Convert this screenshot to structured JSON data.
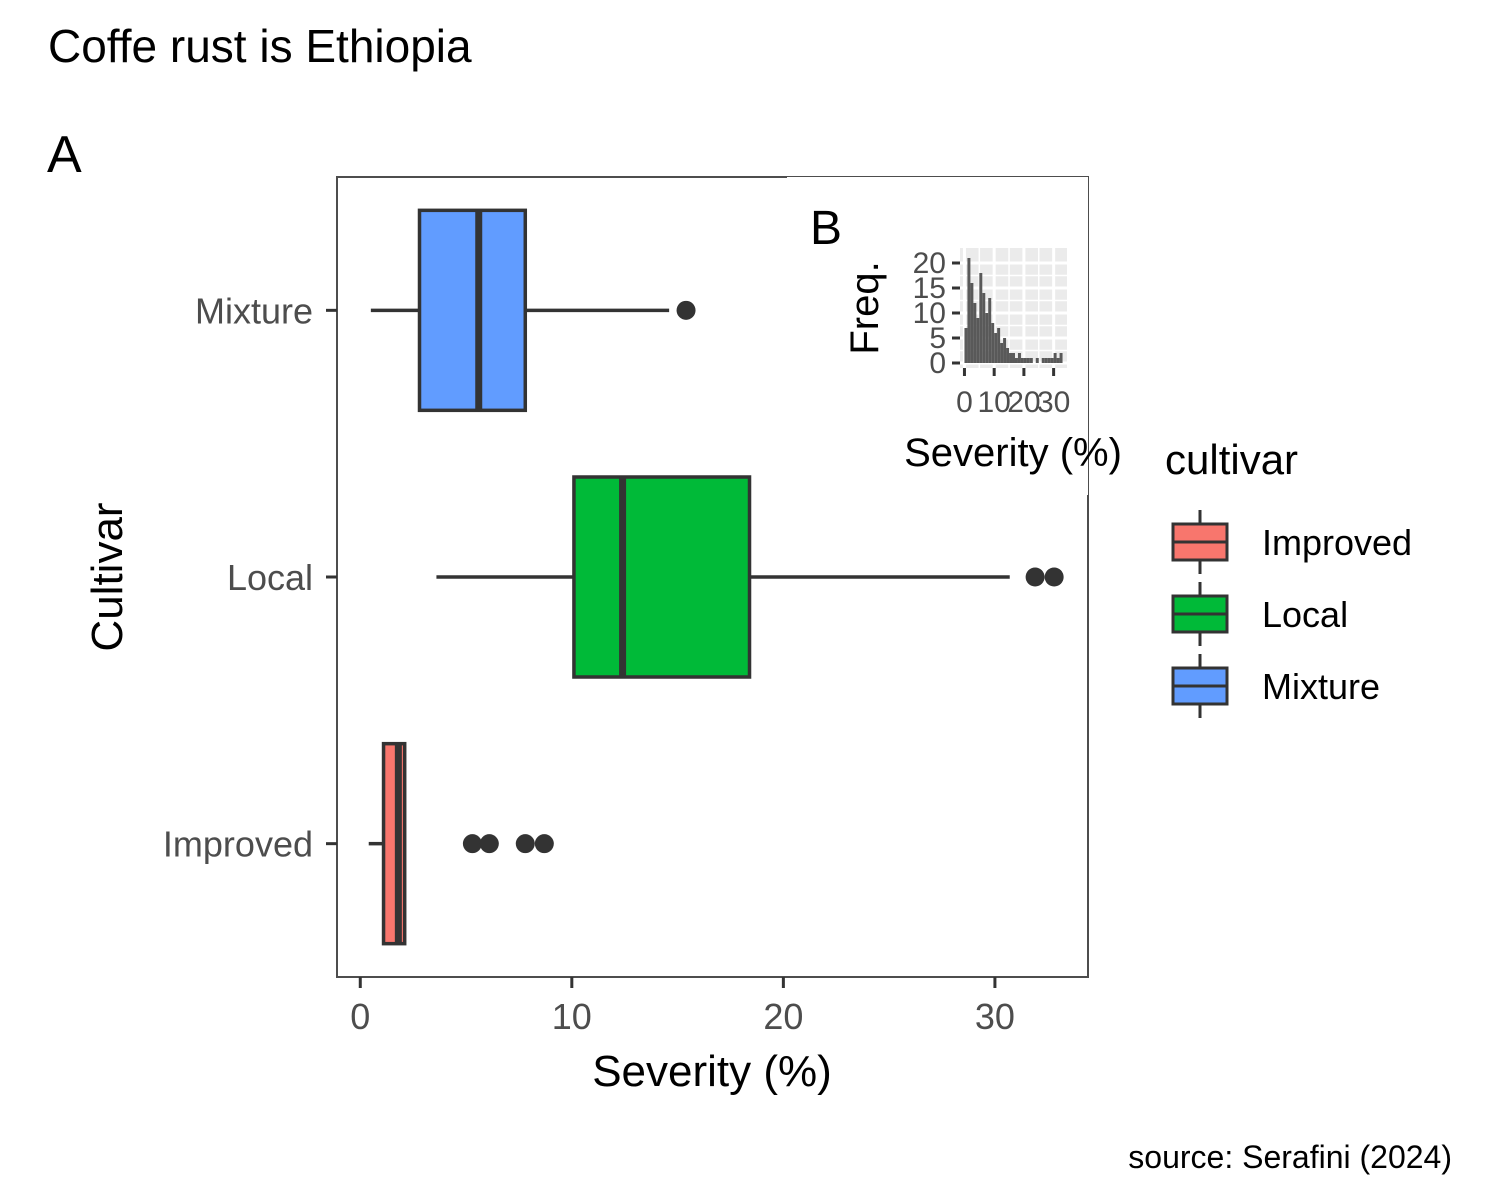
{
  "title": "Coffe rust is Ethiopia",
  "caption": "source: Serafini (2024)",
  "chart_data": [
    {
      "tag": "A",
      "type": "boxplot",
      "orientation": "horizontal",
      "xlabel": "Severity (%)",
      "ylabel": "Cultivar",
      "xlim": [
        -1.1,
        34.4
      ],
      "xticks": [
        0,
        10,
        20,
        30
      ],
      "categories": [
        "Improved",
        "Local",
        "Mixture"
      ],
      "legend": {
        "title": "cultivar",
        "position": "right",
        "entries": [
          "Improved",
          "Local",
          "Mixture"
        ]
      },
      "colors": {
        "Improved": "#F8766D",
        "Local": "#00BA38",
        "Mixture": "#619CFF"
      },
      "series": [
        {
          "category": "Improved",
          "whisker_low": 0.4,
          "q1": 1.1,
          "median": 1.8,
          "q3": 2.1,
          "whisker_high": 2.1,
          "outliers": [
            5.3,
            6.1,
            7.8,
            8.7
          ]
        },
        {
          "category": "Local",
          "whisker_low": 3.6,
          "q1": 10.1,
          "median": 12.4,
          "q3": 18.4,
          "whisker_high": 30.7,
          "outliers": [
            31.9,
            32.8
          ]
        },
        {
          "category": "Mixture",
          "whisker_low": 0.5,
          "q1": 2.8,
          "median": 5.6,
          "q3": 7.8,
          "whisker_high": 14.6,
          "outliers": [
            15.4
          ]
        }
      ]
    },
    {
      "tag": "B",
      "type": "histogram",
      "xlabel": "Severity (%)",
      "ylabel": "Freq.",
      "xlim": [
        -1.5,
        34.5
      ],
      "ylim": [
        -1,
        23
      ],
      "xticks": [
        0,
        10,
        20,
        30
      ],
      "xtick_labels": [
        "0",
        "10",
        "20",
        "30"
      ],
      "yticks": [
        0,
        5,
        10,
        15,
        20
      ],
      "bar_color": "#595959",
      "bins": [
        {
          "x": 0.5,
          "y": 7
        },
        {
          "x": 1.5,
          "y": 21
        },
        {
          "x": 2.5,
          "y": 16
        },
        {
          "x": 3.5,
          "y": 12
        },
        {
          "x": 4.5,
          "y": 9
        },
        {
          "x": 5.5,
          "y": 18
        },
        {
          "x": 6.5,
          "y": 14
        },
        {
          "x": 7.5,
          "y": 10
        },
        {
          "x": 8.5,
          "y": 13
        },
        {
          "x": 9.5,
          "y": 8
        },
        {
          "x": 10.5,
          "y": 6
        },
        {
          "x": 11.5,
          "y": 7
        },
        {
          "x": 12.5,
          "y": 4
        },
        {
          "x": 13.5,
          "y": 5
        },
        {
          "x": 14.5,
          "y": 3
        },
        {
          "x": 15.5,
          "y": 2
        },
        {
          "x": 16.5,
          "y": 2
        },
        {
          "x": 17.5,
          "y": 1
        },
        {
          "x": 18.5,
          "y": 2
        },
        {
          "x": 19.5,
          "y": 1
        },
        {
          "x": 20.5,
          "y": 1
        },
        {
          "x": 21.5,
          "y": 1
        },
        {
          "x": 22.5,
          "y": 1
        },
        {
          "x": 24.5,
          "y": 1
        },
        {
          "x": 26.5,
          "y": 1
        },
        {
          "x": 27.5,
          "y": 1
        },
        {
          "x": 28.5,
          "y": 1
        },
        {
          "x": 29.5,
          "y": 1
        },
        {
          "x": 30.5,
          "y": 2
        },
        {
          "x": 31.5,
          "y": 1
        },
        {
          "x": 32.5,
          "y": 2
        }
      ]
    }
  ]
}
